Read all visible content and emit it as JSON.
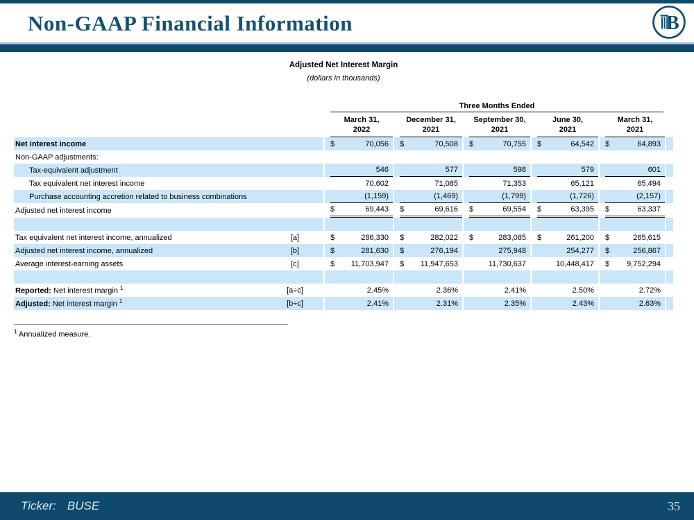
{
  "slide": {
    "title": "Non-GAAP Financial Information"
  },
  "logo": {
    "letter": "B"
  },
  "table": {
    "title": "Adjusted Net Interest Margin",
    "subtitle": "(dollars in thousands)",
    "span_header": "Three Months Ended",
    "columns": [
      {
        "line1": "March 31,",
        "line2": "2022"
      },
      {
        "line1": "December 31,",
        "line2": "2021"
      },
      {
        "line1": "September 30,",
        "line2": "2021"
      },
      {
        "line1": "June 30,",
        "line2": "2021"
      },
      {
        "line1": "March 31,",
        "line2": "2021"
      }
    ],
    "rows": [
      {
        "label": "Net interest income",
        "bold": true,
        "shaded": true,
        "underline": "none",
        "cells": [
          [
            "$",
            "70,056"
          ],
          [
            "$",
            "70,508"
          ],
          [
            "$",
            "70,755"
          ],
          [
            "$",
            "64,542"
          ],
          [
            "$",
            "64,893"
          ]
        ]
      },
      {
        "label": "Non-GAAP adjustments:",
        "shaded": false,
        "underline": "none",
        "cells": null
      },
      {
        "label": "Tax-equivalent adjustment",
        "indent": true,
        "shaded": true,
        "underline": "single",
        "cells": [
          [
            "",
            "546"
          ],
          [
            "",
            "577"
          ],
          [
            "",
            "598"
          ],
          [
            "",
            "579"
          ],
          [
            "",
            "601"
          ]
        ]
      },
      {
        "label": "Tax equivalent net interest income",
        "indent": true,
        "shaded": false,
        "underline": "none",
        "cells": [
          [
            "",
            "70,602"
          ],
          [
            "",
            "71,085"
          ],
          [
            "",
            "71,353"
          ],
          [
            "",
            "65,121"
          ],
          [
            "",
            "65,494"
          ]
        ]
      },
      {
        "label": "Purchase accounting accretion related to business combinations",
        "indent": true,
        "shaded": true,
        "underline": "single",
        "cells": [
          [
            "",
            "(1,159)"
          ],
          [
            "",
            "(1,469)"
          ],
          [
            "",
            "(1,799)"
          ],
          [
            "",
            "(1,726)"
          ],
          [
            "",
            "(2,157)"
          ]
        ]
      },
      {
        "label": "Adjusted net interest income",
        "shaded": false,
        "underline": "double",
        "cells": [
          [
            "$",
            "69,443"
          ],
          [
            "$",
            "69,616"
          ],
          [
            "$",
            "69,554"
          ],
          [
            "$",
            "63,395"
          ],
          [
            "$",
            "63,337"
          ]
        ]
      },
      {
        "spacer": true,
        "shaded": true,
        "cells": null
      },
      {
        "label": "Tax equivalent net interest income, annualized",
        "ref": "[a]",
        "shaded": false,
        "underline": "none",
        "cells": [
          [
            "$",
            "286,330"
          ],
          [
            "$",
            "282,022"
          ],
          [
            "$",
            "283,085"
          ],
          [
            "$",
            "261,200"
          ],
          [
            "$",
            "265,615"
          ]
        ]
      },
      {
        "label": "Adjusted net interest income, annualized",
        "ref": "[b]",
        "shaded": true,
        "underline": "none",
        "cells": [
          [
            "$",
            "281,630"
          ],
          [
            "$",
            "276,194"
          ],
          [
            "",
            "275,948"
          ],
          [
            "",
            "254,277"
          ],
          [
            "$",
            "256,867"
          ]
        ]
      },
      {
        "label": "Average interest-earning assets",
        "ref": "[c]",
        "shaded": false,
        "underline": "none",
        "cells": [
          [
            "$",
            "11,703,947"
          ],
          [
            "$",
            "11,947,653"
          ],
          [
            "",
            "11,730,637"
          ],
          [
            "",
            "10,448,417"
          ],
          [
            "$",
            "9,752,294"
          ]
        ]
      },
      {
        "spacer": true,
        "shaded": true,
        "cells": null
      },
      {
        "label": "Net interest margin",
        "bold_prefix": "Reported:",
        "sup": "1",
        "ref": "[a÷c]",
        "shaded": false,
        "underline": "none",
        "cells": [
          [
            "",
            "2.45%"
          ],
          [
            "",
            "2.36%"
          ],
          [
            "",
            "2.41%"
          ],
          [
            "",
            "2.50%"
          ],
          [
            "",
            "2.72%"
          ]
        ]
      },
      {
        "label": "Net interest margin",
        "bold_prefix": "Adjusted:",
        "sup": "1",
        "ref": "[b÷c]",
        "shaded": true,
        "underline": "none",
        "cells": [
          [
            "",
            "2.41%"
          ],
          [
            "",
            "2.31%"
          ],
          [
            "",
            "2.35%"
          ],
          [
            "",
            "2.43%"
          ],
          [
            "",
            "2.63%"
          ]
        ]
      }
    ],
    "footnote_marker": "1",
    "footnote_text": "Annualized measure."
  },
  "footer": {
    "ticker_label": "Ticker:",
    "ticker_value": "BUSE",
    "page_number": "35"
  },
  "colors": {
    "navy": "#0f4a6c",
    "title_color": "#17506f",
    "row_blue": "#cbe6f8",
    "divider_light": "#a8c6d8",
    "footer_text": "#d8e6ef"
  }
}
